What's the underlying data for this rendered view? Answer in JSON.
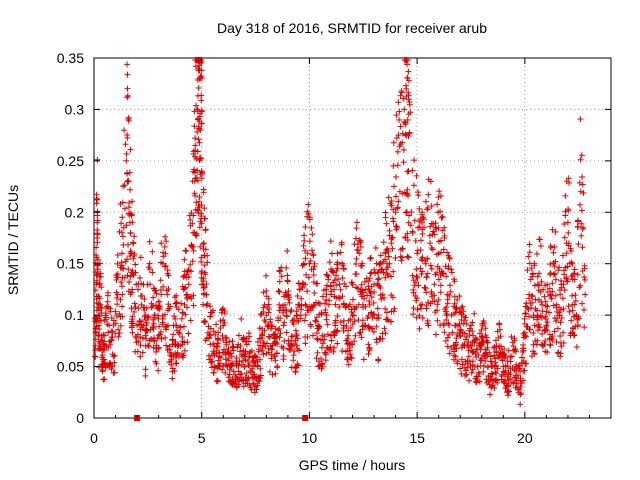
{
  "chart_data": {
    "type": "scatter",
    "title": "Day 318 of 2016, SRMTID for receiver arub",
    "xlabel": "GPS time / hours",
    "ylabel": "SRMTID / TECUs",
    "xlim": [
      0,
      24
    ],
    "ylim": [
      0,
      0.35
    ],
    "xticks": [
      0,
      5,
      10,
      15,
      20
    ],
    "xtick_labels": [
      "0",
      "5",
      "10",
      "15",
      "20"
    ],
    "yticks": [
      0,
      0.05,
      0.1,
      0.15,
      0.2,
      0.25,
      0.3,
      0.35
    ],
    "ytick_labels": [
      "0",
      "0.05",
      "0.1",
      "0.15",
      "0.2",
      "0.25",
      "0.3",
      "0.35"
    ],
    "grid": true,
    "marker_color": "#dd0000",
    "series": [
      {
        "name": "SRMTID",
        "marker": "plus",
        "points_note": "dense scatter of several thousand points, representative samples below",
        "x": [
          0.05,
          0.1,
          0.15,
          0.2,
          0.3,
          0.4,
          0.5,
          0.7,
          0.9,
          1.1,
          1.3,
          1.5,
          1.6,
          1.7,
          1.8,
          2.0,
          2.2,
          2.4,
          2.6,
          2.8,
          3.0,
          3.2,
          3.4,
          3.6,
          3.8,
          4.0,
          4.2,
          4.4,
          4.6,
          4.7,
          4.8,
          4.85,
          4.9,
          4.95,
          5.0,
          5.1,
          5.2,
          5.4,
          5.6,
          5.8,
          6.0,
          6.2,
          6.4,
          6.6,
          6.8,
          7.0,
          7.2,
          7.4,
          7.6,
          7.8,
          8.0,
          8.2,
          8.4,
          8.6,
          8.8,
          9.0,
          9.2,
          9.4,
          9.6,
          9.8,
          10.0,
          10.2,
          10.4,
          10.6,
          10.8,
          11.0,
          11.2,
          11.4,
          11.6,
          11.8,
          12.0,
          12.2,
          12.4,
          12.6,
          12.8,
          13.0,
          13.2,
          13.4,
          13.6,
          13.8,
          14.0,
          14.2,
          14.4,
          14.5,
          14.6,
          14.8,
          15.0,
          15.2,
          15.4,
          15.6,
          15.8,
          16.0,
          16.2,
          16.4,
          16.6,
          16.8,
          17.0,
          17.2,
          17.4,
          17.6,
          17.8,
          18.0,
          18.2,
          18.4,
          18.6,
          18.8,
          19.0,
          19.2,
          19.4,
          19.6,
          19.8,
          20.0,
          20.2,
          20.4,
          20.6,
          20.8,
          21.0,
          21.2,
          21.4,
          21.6,
          21.8,
          22.0,
          22.2,
          22.4,
          22.6,
          22.8
        ],
        "y": [
          0.06,
          0.13,
          0.19,
          0.08,
          0.11,
          0.05,
          0.07,
          0.09,
          0.06,
          0.12,
          0.16,
          0.25,
          0.23,
          0.18,
          0.14,
          0.09,
          0.11,
          0.07,
          0.13,
          0.1,
          0.08,
          0.15,
          0.12,
          0.06,
          0.09,
          0.07,
          0.11,
          0.13,
          0.18,
          0.26,
          0.3,
          0.34,
          0.33,
          0.28,
          0.24,
          0.17,
          0.12,
          0.08,
          0.07,
          0.06,
          0.09,
          0.05,
          0.06,
          0.04,
          0.07,
          0.05,
          0.06,
          0.04,
          0.05,
          0.08,
          0.1,
          0.07,
          0.06,
          0.11,
          0.09,
          0.12,
          0.07,
          0.08,
          0.1,
          0.13,
          0.15,
          0.11,
          0.09,
          0.08,
          0.1,
          0.12,
          0.09,
          0.13,
          0.11,
          0.08,
          0.1,
          0.14,
          0.12,
          0.09,
          0.11,
          0.13,
          0.1,
          0.12,
          0.15,
          0.17,
          0.2,
          0.22,
          0.3,
          0.32,
          0.24,
          0.18,
          0.16,
          0.14,
          0.15,
          0.17,
          0.13,
          0.16,
          0.14,
          0.12,
          0.1,
          0.09,
          0.08,
          0.07,
          0.06,
          0.08,
          0.05,
          0.07,
          0.06,
          0.04,
          0.05,
          0.07,
          0.05,
          0.04,
          0.06,
          0.05,
          0.03,
          0.08,
          0.12,
          0.1,
          0.13,
          0.11,
          0.09,
          0.12,
          0.14,
          0.1,
          0.13,
          0.19,
          0.11,
          0.1,
          0.22,
          0.12
        ]
      }
    ],
    "extra_markers": [
      {
        "x": 2.0,
        "y": 0.0
      },
      {
        "x": 9.8,
        "y": 0.0
      }
    ]
  }
}
